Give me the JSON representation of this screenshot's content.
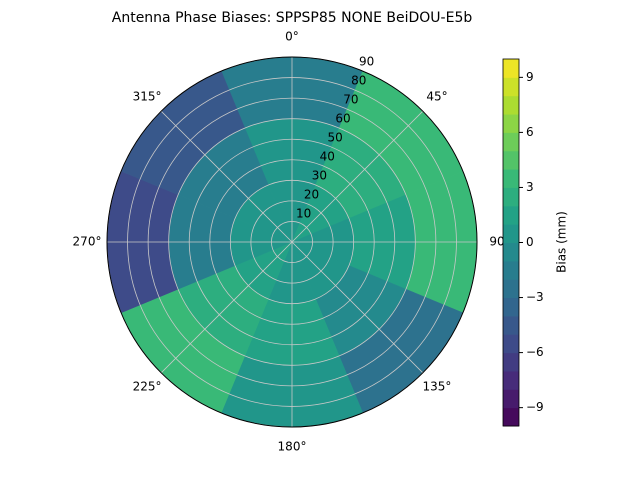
{
  "chart_data": {
    "type": "polar-contour",
    "title": "Antenna Phase Biases: SPPSP85         NONE BeiDOU-E5b",
    "colorbar_label": "Bias (mm)",
    "colormap": "viridis",
    "clim": [
      -10,
      10
    ],
    "cticks": [
      {
        "value": -9,
        "label": "−9"
      },
      {
        "value": -6,
        "label": "−6"
      },
      {
        "value": -3,
        "label": "−3"
      },
      0,
      3,
      6,
      9
    ],
    "rlim": [
      0,
      90
    ],
    "rticks": [
      10,
      20,
      30,
      40,
      50,
      60,
      70,
      80,
      90
    ],
    "thetaticks": [
      {
        "value": 0,
        "label": "0°"
      },
      {
        "value": 45,
        "label": "45°"
      },
      {
        "value": 90,
        "label": "90"
      },
      {
        "value": 135,
        "label": "135°"
      },
      {
        "value": 180,
        "label": "180°"
      },
      {
        "value": 225,
        "label": "225°"
      },
      {
        "value": 270,
        "label": "270°"
      },
      {
        "value": 315,
        "label": "315°"
      }
    ],
    "azimuths": [
      0,
      45,
      90,
      135,
      180,
      225,
      270,
      315
    ],
    "radii": [
      15,
      45,
      75
    ],
    "z": [
      [
        0.5,
        0,
        -1.5
      ],
      [
        1,
        2,
        3
      ],
      [
        0.5,
        1.5,
        3.5
      ],
      [
        0,
        -1,
        -3
      ],
      [
        0.5,
        1,
        0.5
      ],
      [
        1,
        2,
        3
      ],
      [
        0,
        -1.5,
        -5.5
      ],
      [
        0,
        -2,
        -4.5
      ]
    ],
    "grid": true
  }
}
